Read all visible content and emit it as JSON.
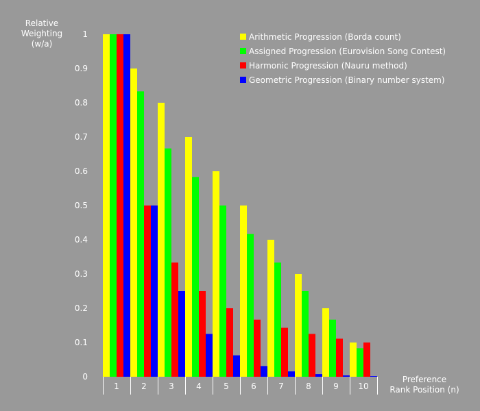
{
  "chart_data": {
    "type": "bar",
    "title": "",
    "ylabel": [
      "Relative",
      "Weighting",
      "(w/a)"
    ],
    "xlabel": [
      "Preference",
      "Rank Position (n)"
    ],
    "ylim": [
      0,
      1
    ],
    "yticks": [
      "0",
      "0.1",
      "0.2",
      "0.3",
      "0.4",
      "0.5",
      "0.6",
      "0.7",
      "0.8",
      "0.9",
      "1"
    ],
    "categories": [
      "1",
      "2",
      "3",
      "4",
      "5",
      "6",
      "7",
      "8",
      "9",
      "10"
    ],
    "grid": false,
    "legend_position": "top-right",
    "series": [
      {
        "name": "Arithmetic Progression (Borda count)",
        "color": "#ffff00",
        "values": [
          1,
          0.9,
          0.8,
          0.7,
          0.6,
          0.5,
          0.4,
          0.3,
          0.2,
          0.1
        ]
      },
      {
        "name": "Assigned Progression (Eurovision Song Contest)",
        "color": "#00ff00",
        "values": [
          1,
          0.8333,
          0.6667,
          0.5833,
          0.5,
          0.4167,
          0.3333,
          0.25,
          0.1667,
          0.0833
        ]
      },
      {
        "name": "Harmonic Progression (Nauru method)",
        "color": "#ff0000",
        "values": [
          1,
          0.5,
          0.3333,
          0.25,
          0.2,
          0.1667,
          0.1429,
          0.125,
          0.1111,
          0.1
        ]
      },
      {
        "name": "Geometric Progression (Binary number system)",
        "color": "#0000ff",
        "values": [
          1,
          0.5,
          0.25,
          0.125,
          0.0625,
          0.03125,
          0.015625,
          0.0078125,
          0.00390625,
          0.001953125
        ]
      }
    ]
  }
}
